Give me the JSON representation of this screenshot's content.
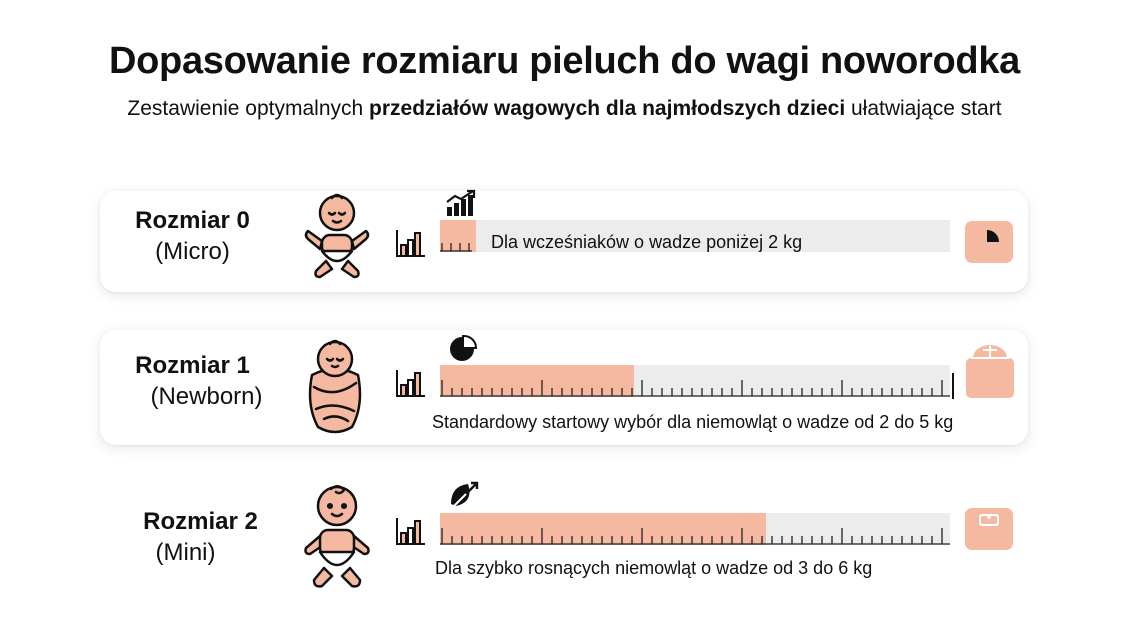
{
  "header": {
    "title": "Dopasowanie rozmiaru pieluch do wagi noworodka",
    "subtitle_pre": "Zestawienie optymalnych ",
    "subtitle_bold": "przedziałów wagowych dla najmłodszych dzieci",
    "subtitle_post": " ułatwiające start"
  },
  "colors": {
    "accent": "#f5b8a0",
    "track": "#ececec",
    "text": "#111111"
  },
  "sizes": [
    {
      "name": "Rozmiar 0",
      "subname": "(Micro)",
      "description": "Dla wcześniaków o wadze poniżej 2 kg",
      "fill_fraction": 0.07,
      "icons": [
        "baby-icon",
        "bar-chart-icon",
        "growth-chart-icon",
        "pie-chart-icon"
      ]
    },
    {
      "name": "Rozmiar 1",
      "subname": "(Newborn)",
      "description": "Standardowy startowy wybór dla niemowląt o wadze od 2 do 5 kg",
      "fill_fraction": 0.38,
      "icons": [
        "swaddled-baby-icon",
        "bar-chart-icon",
        "pie-chart-icon",
        "scale-icon"
      ]
    },
    {
      "name": "Rozmiar 2",
      "subname": "(Mini)",
      "description": "Dla szybko rosnących niemowląt o wadze od 3 do 6 kg",
      "fill_fraction": 0.64,
      "icons": [
        "baby-icon",
        "bar-chart-icon",
        "leaf-growth-icon",
        "bathroom-scale-icon"
      ]
    }
  ]
}
